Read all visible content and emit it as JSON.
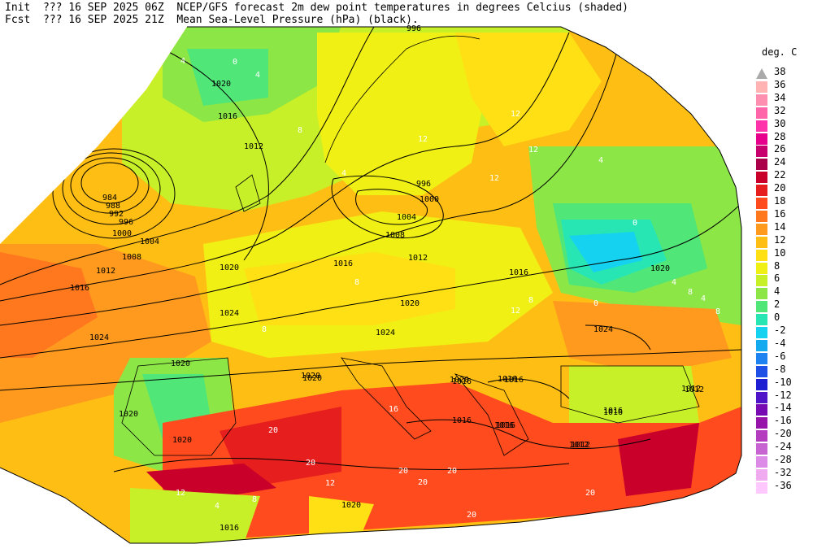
{
  "header": {
    "line1": "Init  ??? 16 SEP 2025 06Z  NCEP/GFS forecast 2m dew point temperatures in degrees Celcius (shaded)",
    "line2": "Fcst  ??? 16 SEP 2025 21Z  Mean Sea-Level Pressure (hPa) (black)."
  },
  "colorbar": {
    "title": "deg. C",
    "entries": [
      {
        "label": "38",
        "color": "#aaaaaa"
      },
      {
        "label": "36",
        "color": "#ffb3b3"
      },
      {
        "label": "34",
        "color": "#ff8fb0"
      },
      {
        "label": "32",
        "color": "#ff66aa"
      },
      {
        "label": "30",
        "color": "#ff33aa"
      },
      {
        "label": "28",
        "color": "#e6008c"
      },
      {
        "label": "26",
        "color": "#c8006e"
      },
      {
        "label": "24",
        "color": "#aa004a"
      },
      {
        "label": "22",
        "color": "#c8002a"
      },
      {
        "label": "20",
        "color": "#e61e1e"
      },
      {
        "label": "18",
        "color": "#ff4b1e"
      },
      {
        "label": "16",
        "color": "#ff781e"
      },
      {
        "label": "14",
        "color": "#ff9a1e"
      },
      {
        "label": "12",
        "color": "#ffbe14"
      },
      {
        "label": "10",
        "color": "#ffe014"
      },
      {
        "label": "8",
        "color": "#f0f014"
      },
      {
        "label": "6",
        "color": "#c8f028"
      },
      {
        "label": "4",
        "color": "#8ce646"
      },
      {
        "label": "2",
        "color": "#50e678"
      },
      {
        "label": "0",
        "color": "#28e6b4"
      },
      {
        "label": "-2",
        "color": "#14d2f0"
      },
      {
        "label": "-4",
        "color": "#14aaf0"
      },
      {
        "label": "-6",
        "color": "#1e82f0"
      },
      {
        "label": "-8",
        "color": "#1e50e6"
      },
      {
        "label": "-10",
        "color": "#1e1ed2"
      },
      {
        "label": "-12",
        "color": "#5014c8"
      },
      {
        "label": "-14",
        "color": "#780ab4"
      },
      {
        "label": "-16",
        "color": "#9614aa"
      },
      {
        "label": "-20",
        "color": "#b43cbe"
      },
      {
        "label": "-24",
        "color": "#c864d2"
      },
      {
        "label": "-28",
        "color": "#dc8ce6"
      },
      {
        "label": "-32",
        "color": "#f0aaf0"
      },
      {
        "label": "-36",
        "color": "#ffc8ff"
      }
    ]
  },
  "isobar_labels": [
    "996",
    "1020",
    "1016",
    "1012",
    "984",
    "988",
    "992",
    "996",
    "1000",
    "1004",
    "1008",
    "1012",
    "1016",
    "1020",
    "1024",
    "1024",
    "1020",
    "1016",
    "1020",
    "1024",
    "1020",
    "1016",
    "1012",
    "1016",
    "996",
    "1000",
    "1004",
    "1008",
    "1016",
    "1012",
    "1020",
    "1024",
    "1016",
    "1020",
    "1020",
    "1016",
    "1016",
    "1016",
    "1012",
    "1020",
    "1012",
    "1016",
    "1020",
    "1020",
    "1016",
    "1016",
    "1012"
  ],
  "temp_labels": [
    "4",
    "4",
    "0",
    "8",
    "12",
    "4",
    "12",
    "12",
    "12",
    "4",
    "0",
    "8",
    "8",
    "12",
    "8",
    "0",
    "4",
    "4",
    "8",
    "20",
    "20",
    "20",
    "20",
    "20",
    "20",
    "20",
    "12",
    "16",
    "8",
    "8",
    "4",
    "12"
  ]
}
